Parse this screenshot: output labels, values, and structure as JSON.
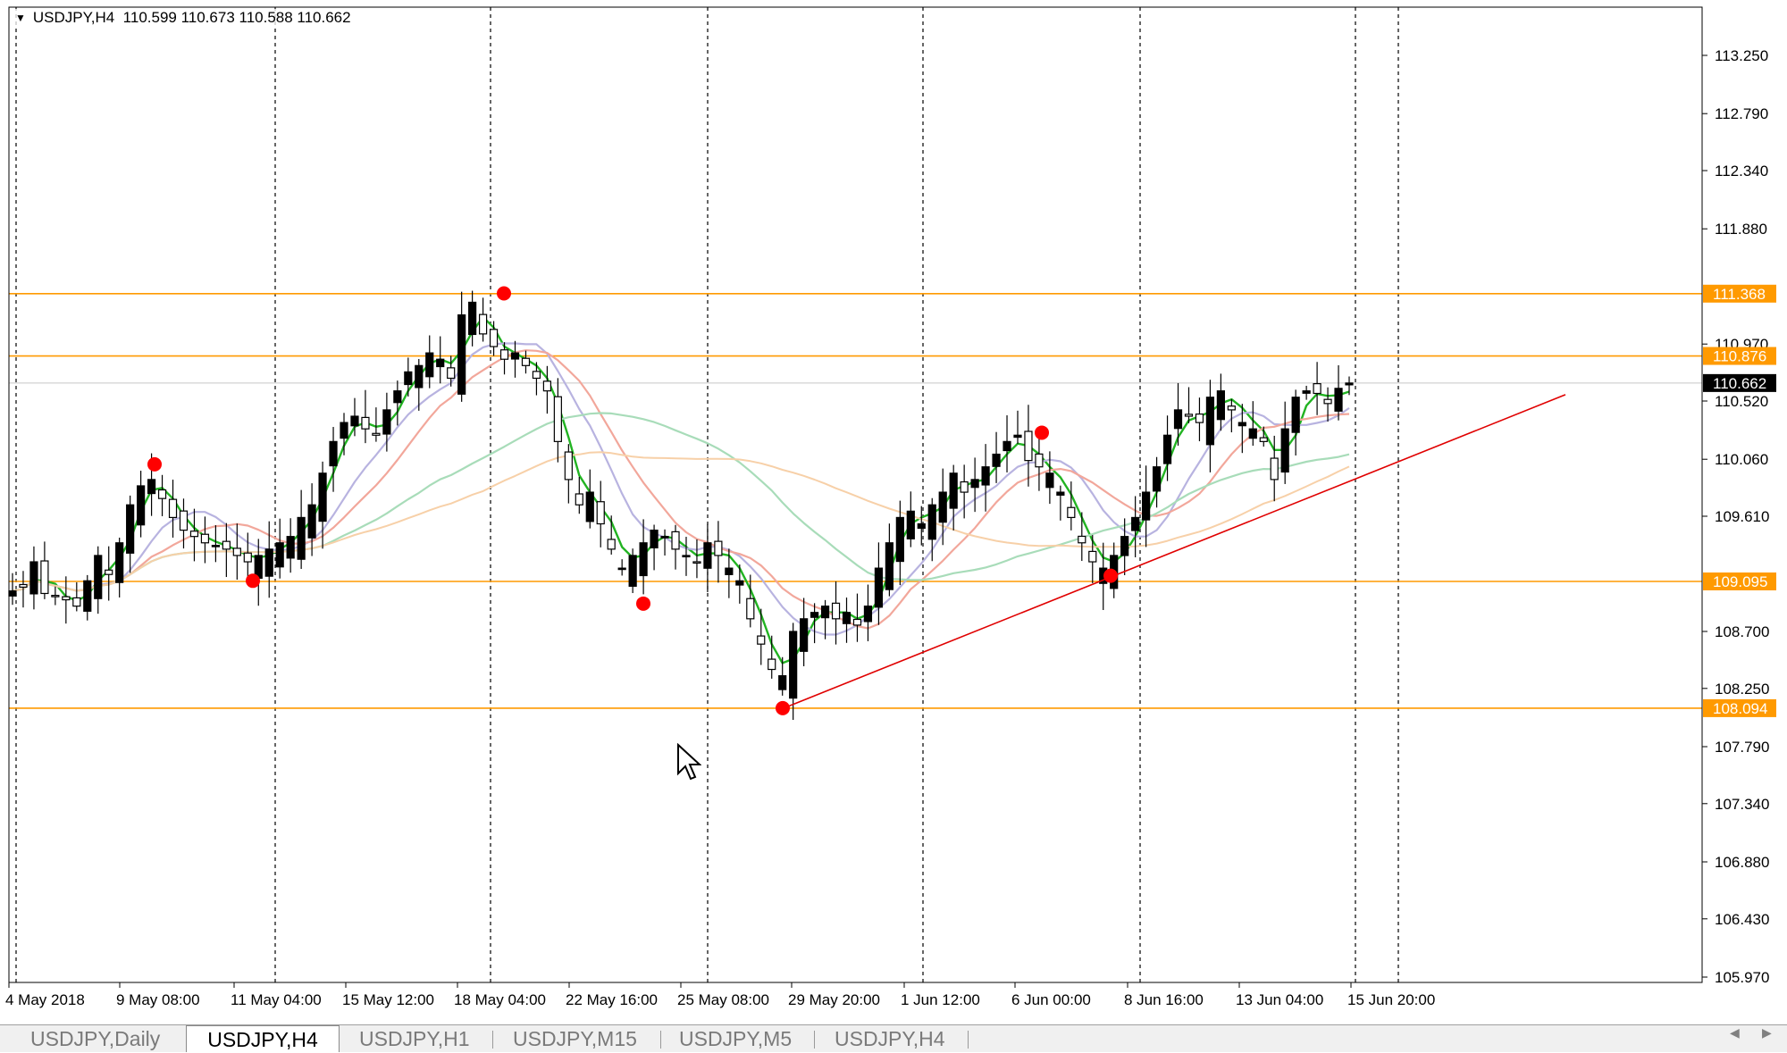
{
  "window": {
    "symbol_header": "USDJPY,H4  110.599 110.673 110.588 110.662"
  },
  "price_axis": {
    "ticks": [
      "113.250",
      "112.790",
      "112.340",
      "111.880",
      "110.970",
      "110.520",
      "110.060",
      "109.610",
      "108.700",
      "108.250",
      "107.790",
      "107.340",
      "106.880",
      "106.430",
      "105.970"
    ],
    "level_labels": [
      {
        "value": "111.368",
        "type": "horizontal-line",
        "color": "#ff9a00"
      },
      {
        "value": "110.876",
        "type": "horizontal-line",
        "color": "#ff9a00"
      },
      {
        "value": "109.095",
        "type": "horizontal-line",
        "color": "#ff9a00"
      },
      {
        "value": "108.094",
        "type": "horizontal-line",
        "color": "#ff9a00"
      }
    ],
    "current_price": "110.662"
  },
  "time_axis": {
    "labels": [
      "4 May 2018",
      "9 May 08:00",
      "11 May 04:00",
      "15 May 12:00",
      "18 May 04:00",
      "22 May 16:00",
      "25 May 08:00",
      "29 May 20:00",
      "1 Jun 12:00",
      "6 Jun 00:00",
      "8 Jun 16:00",
      "13 Jun 04:00",
      "15 Jun 20:00"
    ]
  },
  "chart_data": {
    "type": "candlestick",
    "symbol": "USDJPY",
    "timeframe": "H4",
    "ohlc_last": {
      "open": 110.599,
      "high": 110.673,
      "low": 110.588,
      "close": 110.662
    },
    "y_range": [
      105.9,
      113.4
    ],
    "horizontal_lines": [
      111.368,
      110.876,
      109.095,
      108.094
    ],
    "trendline": {
      "from": {
        "time": "27 May 2018",
        "price": 108.094
      },
      "to": {
        "time": "19 Jun 2018",
        "price": 110.57
      },
      "color": "#e00000"
    },
    "swing_points": [
      {
        "label": "high",
        "price": 110.02
      },
      {
        "label": "low",
        "price": 109.1
      },
      {
        "label": "high",
        "price": 111.37
      },
      {
        "label": "low",
        "price": 108.92
      },
      {
        "label": "low",
        "price": 108.094
      },
      {
        "label": "high",
        "price": 110.27
      },
      {
        "label": "low",
        "price": 109.14
      }
    ],
    "closes": [
      109.02,
      109.05,
      109.25,
      109.0,
      108.98,
      108.95,
      108.9,
      109.1,
      109.3,
      109.15,
      109.4,
      109.7,
      109.85,
      109.9,
      109.75,
      109.6,
      109.5,
      109.45,
      109.4,
      109.38,
      109.35,
      109.3,
      109.25,
      109.3,
      109.35,
      109.4,
      109.45,
      109.6,
      109.7,
      109.95,
      110.2,
      110.35,
      110.4,
      110.3,
      110.25,
      110.45,
      110.6,
      110.75,
      110.8,
      110.9,
      110.85,
      110.7,
      111.2,
      111.3,
      111.05,
      110.95,
      110.85,
      110.9,
      110.8,
      110.7,
      110.6,
      110.2,
      109.9,
      109.7,
      109.8,
      109.55,
      109.35,
      109.2,
      109.3,
      109.4,
      109.5,
      109.45,
      109.35,
      109.3,
      109.25,
      109.4,
      109.3,
      109.2,
      109.1,
      108.8,
      108.6,
      108.4,
      108.35,
      108.7,
      108.8,
      108.85,
      108.9,
      108.8,
      108.85,
      108.75,
      108.9,
      109.2,
      109.4,
      109.6,
      109.65,
      109.55,
      109.7,
      109.8,
      109.95,
      109.8,
      109.9,
      110.0,
      110.1,
      110.2,
      110.25,
      110.05,
      110.0,
      109.95,
      109.8,
      109.6,
      109.4,
      109.25,
      109.2,
      109.3,
      109.45,
      109.6,
      109.8,
      110.0,
      110.25,
      110.45,
      110.4,
      110.35,
      110.55,
      110.6,
      110.45,
      110.35,
      110.3,
      110.2,
      109.9,
      110.3,
      110.55,
      110.6,
      110.58,
      110.5,
      110.62,
      110.662
    ],
    "moving_averages": [
      {
        "color": "#22b322"
      },
      {
        "color": "#b8b3e0"
      },
      {
        "color": "#f2a79b"
      },
      {
        "color": "#a8dcb9"
      },
      {
        "color": "#f7d0a8"
      }
    ]
  },
  "tabs": [
    {
      "label": "USDJPY,Daily",
      "active": false
    },
    {
      "label": "USDJPY,H4",
      "active": true
    },
    {
      "label": "USDJPY,H1",
      "active": false
    },
    {
      "label": "USDJPY,M15",
      "active": false
    },
    {
      "label": "USDJPY,M5",
      "active": false
    },
    {
      "label": "USDJPY,H4",
      "active": false
    }
  ]
}
